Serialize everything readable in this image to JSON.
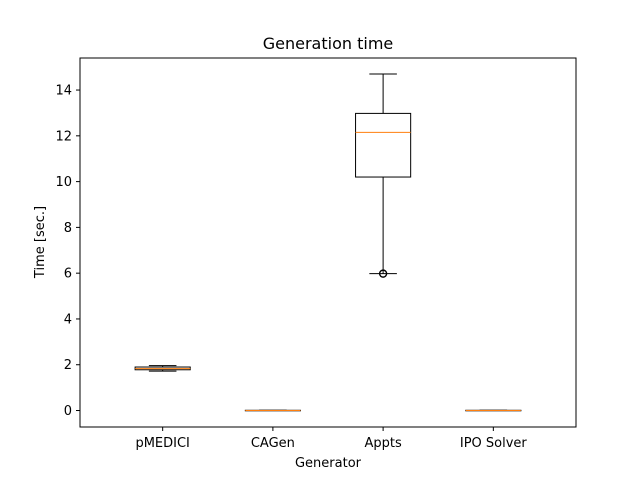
{
  "chart_data": {
    "type": "box",
    "title": "Generation time",
    "xlabel": "Generator",
    "ylabel": "Time [sec.]",
    "ylim": [
      -0.72,
      15.4
    ],
    "yticks": [
      0,
      2,
      4,
      6,
      8,
      10,
      12,
      14
    ],
    "grid": false,
    "categories": [
      "pMEDICI",
      "CAGen",
      "Appts",
      "IPO Solver"
    ],
    "boxes": [
      {
        "category": "pMEDICI",
        "whisker_low": 1.72,
        "q1": 1.78,
        "median": 1.83,
        "q3": 1.9,
        "whisker_high": 1.96,
        "outliers": []
      },
      {
        "category": "CAGen",
        "whisker_low": 0.0,
        "q1": 0.0,
        "median": 0.0,
        "q3": 0.01,
        "whisker_high": 0.01,
        "outliers": []
      },
      {
        "category": "Appts",
        "whisker_low": 5.98,
        "q1": 10.2,
        "median": 12.15,
        "q3": 12.98,
        "whisker_high": 14.7,
        "outliers": [
          5.98
        ]
      },
      {
        "category": "IPO Solver",
        "whisker_low": 0.0,
        "q1": 0.0,
        "median": 0.0,
        "q3": 0.01,
        "whisker_high": 0.01,
        "outliers": []
      }
    ],
    "colors": {
      "box": "#000000",
      "median": "#ff7f0e"
    }
  }
}
